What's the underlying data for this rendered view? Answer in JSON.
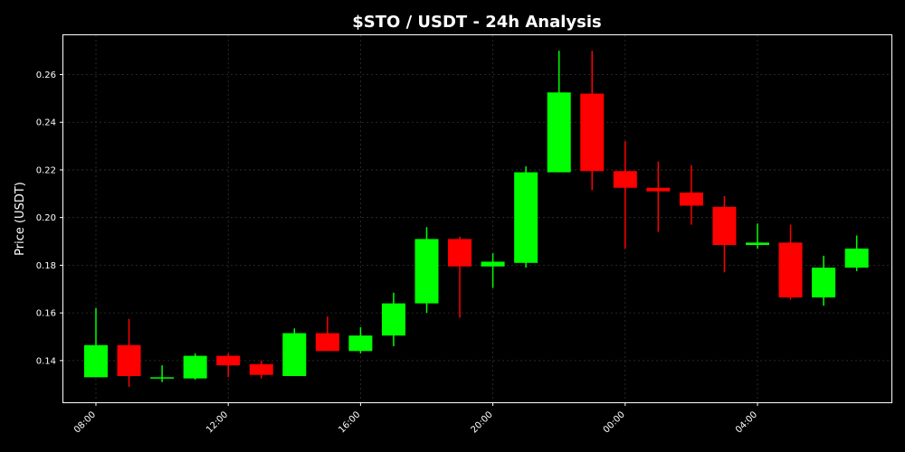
{
  "chart_data": {
    "type": "candlestick",
    "title": "$STO / USDT - 24h Analysis",
    "xlabel": "",
    "ylabel": "Price (USDT)",
    "ylim": [
      0.1225,
      0.2765
    ],
    "grid": true,
    "colors": {
      "up": "#00ff00",
      "down": "#ff0000",
      "background": "#000000",
      "text": "#ffffff",
      "grid": "#333333"
    },
    "x": [
      "08:00",
      "09:00",
      "10:00",
      "11:00",
      "12:00",
      "13:00",
      "14:00",
      "15:00",
      "16:00",
      "17:00",
      "18:00",
      "19:00",
      "20:00",
      "21:00",
      "22:00",
      "23:00",
      "00:00",
      "01:00",
      "02:00",
      "03:00",
      "04:00",
      "05:00",
      "06:00",
      "07:00"
    ],
    "x_tick_labels": [
      "08:00",
      "12:00",
      "16:00",
      "20:00",
      "00:00",
      "04:00"
    ],
    "y_ticks": [
      0.14,
      0.16,
      0.18,
      0.2,
      0.22,
      0.24,
      0.26
    ],
    "y_tick_labels": [
      "0.14",
      "0.16",
      "0.18",
      "0.20",
      "0.22",
      "0.24",
      "0.26"
    ],
    "open": [
      0.133,
      0.1465,
      0.133,
      0.1325,
      0.142,
      0.1385,
      0.1335,
      0.1515,
      0.144,
      0.1505,
      0.164,
      0.191,
      0.1795,
      0.181,
      0.219,
      0.252,
      0.2195,
      0.2125,
      0.2105,
      0.2045,
      0.1885,
      0.1895,
      0.1665,
      0.179
    ],
    "high": [
      0.162,
      0.1575,
      0.138,
      0.143,
      0.143,
      0.14,
      0.1535,
      0.1585,
      0.154,
      0.1685,
      0.196,
      0.192,
      0.185,
      0.2215,
      0.27,
      0.27,
      0.232,
      0.2235,
      0.222,
      0.209,
      0.1975,
      0.197,
      0.184,
      0.1925
    ],
    "low": [
      0.133,
      0.129,
      0.131,
      0.132,
      0.133,
      0.1325,
      0.1335,
      0.144,
      0.143,
      0.146,
      0.16,
      0.158,
      0.1705,
      0.179,
      0.219,
      0.2115,
      0.187,
      0.194,
      0.197,
      0.177,
      0.187,
      0.1655,
      0.163,
      0.1775
    ],
    "close": [
      0.1465,
      0.1335,
      0.133,
      0.142,
      0.138,
      0.134,
      0.1515,
      0.144,
      0.1505,
      0.164,
      0.191,
      0.1795,
      0.1815,
      0.219,
      0.2525,
      0.2195,
      0.2125,
      0.211,
      0.205,
      0.1885,
      0.1895,
      0.1665,
      0.179,
      0.187
    ]
  }
}
